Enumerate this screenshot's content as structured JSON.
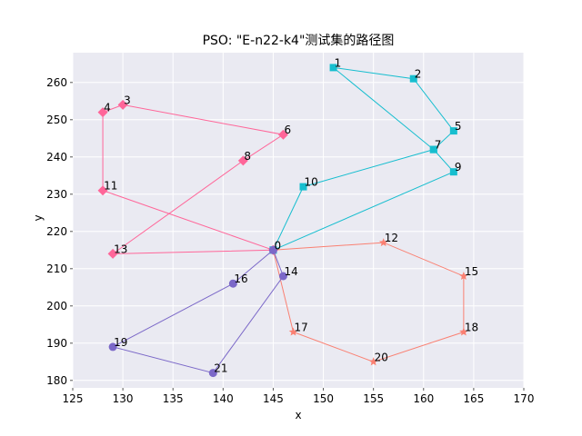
{
  "chart_data": {
    "type": "line",
    "title": "PSO: \"E-n22-k4\"测试集的路径图",
    "xlabel": "x",
    "ylabel": "y",
    "xlim": [
      125,
      170
    ],
    "ylim": [
      178,
      268
    ],
    "xticks": [
      125,
      130,
      135,
      140,
      145,
      150,
      155,
      160,
      165,
      170
    ],
    "yticks": [
      180,
      190,
      200,
      210,
      220,
      230,
      240,
      250,
      260
    ],
    "grid": true,
    "depot": {
      "id": "0",
      "x": 145,
      "y": 215
    },
    "routes": [
      {
        "color": "#17becf",
        "marker": "square",
        "points": [
          {
            "id": "0",
            "x": 145,
            "y": 215
          },
          {
            "id": "10",
            "x": 148,
            "y": 232
          },
          {
            "id": "7",
            "x": 161,
            "y": 242
          },
          {
            "id": "1",
            "x": 151,
            "y": 264
          },
          {
            "id": "2",
            "x": 159,
            "y": 261
          },
          {
            "id": "5",
            "x": 163,
            "y": 247
          },
          {
            "id": "7",
            "x": 161,
            "y": 242
          },
          {
            "id": "9",
            "x": 163,
            "y": 236
          },
          {
            "id": "0",
            "x": 145,
            "y": 215
          }
        ]
      },
      {
        "color": "#ff6699",
        "marker": "diamond",
        "points": [
          {
            "id": "0",
            "x": 145,
            "y": 215
          },
          {
            "id": "11",
            "x": 128,
            "y": 231
          },
          {
            "id": "4",
            "x": 128,
            "y": 252
          },
          {
            "id": "3",
            "x": 130,
            "y": 254
          },
          {
            "id": "6",
            "x": 146,
            "y": 246
          },
          {
            "id": "8",
            "x": 142,
            "y": 239
          },
          {
            "id": "13",
            "x": 129,
            "y": 214
          },
          {
            "id": "0",
            "x": 145,
            "y": 215
          }
        ]
      },
      {
        "color": "#fa8072",
        "marker": "star",
        "points": [
          {
            "id": "0",
            "x": 145,
            "y": 215
          },
          {
            "id": "12",
            "x": 156,
            "y": 217
          },
          {
            "id": "15",
            "x": 164,
            "y": 208
          },
          {
            "id": "18",
            "x": 164,
            "y": 193
          },
          {
            "id": "20",
            "x": 155,
            "y": 185
          },
          {
            "id": "17",
            "x": 147,
            "y": 193
          },
          {
            "id": "0",
            "x": 145,
            "y": 215
          }
        ]
      },
      {
        "color": "#7b68c8",
        "marker": "circle",
        "points": [
          {
            "id": "0",
            "x": 145,
            "y": 215
          },
          {
            "id": "16",
            "x": 141,
            "y": 206
          },
          {
            "id": "19",
            "x": 129,
            "y": 189
          },
          {
            "id": "21",
            "x": 139,
            "y": 182
          },
          {
            "id": "14",
            "x": 146,
            "y": 208
          },
          {
            "id": "0",
            "x": 145,
            "y": 215
          }
        ]
      }
    ]
  }
}
